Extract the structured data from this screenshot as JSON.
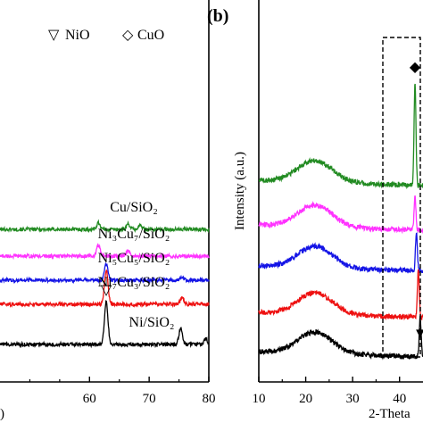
{
  "chart_data": [
    {
      "type": "line",
      "panel": "a",
      "xlabel": ")",
      "ylabel": "",
      "xlim": [
        45,
        80
      ],
      "xticks": [
        60,
        70,
        80
      ],
      "legend": {
        "placement": "top-right",
        "entries": [
          {
            "symbol": "▽",
            "label": "NiO"
          },
          {
            "symbol": "◇",
            "label": "CuO"
          }
        ]
      },
      "series": [
        {
          "name": "Cu/SiO₂",
          "color": "#228b22",
          "baseline": 0.62,
          "peaks": [
            [
              61.5,
              0.05
            ],
            [
              66.5,
              0.04
            ],
            [
              68.5,
              0.03
            ]
          ]
        },
        {
          "name": "Ni₃Cu₇/SiO₂",
          "color": "#ff33ff",
          "baseline": 0.42,
          "peaks": [
            [
              61.5,
              0.08
            ],
            [
              66.5,
              0.04
            ]
          ]
        },
        {
          "name": "Ni₅Cu₅/SiO₂",
          "color": "#1414e6",
          "baseline": 0.24,
          "peaks": [
            [
              62.8,
              0.12
            ],
            [
              75.5,
              0.02
            ]
          ]
        },
        {
          "name": "Ni₇Cu₃/SiO₂",
          "color": "#ee1111",
          "baseline": 0.06,
          "peaks": [
            [
              62.8,
              0.26
            ],
            [
              75.5,
              0.05
            ]
          ]
        },
        {
          "name": "Ni/SiO₂",
          "color": "#000000",
          "baseline": -0.24,
          "peaks": [
            [
              62.8,
              0.32
            ],
            [
              75.3,
              0.12
            ],
            [
              79.5,
              0.04
            ]
          ]
        }
      ],
      "annotations": [
        {
          "symbol": "▽",
          "x": 62.8,
          "series": "Ni/SiO₂"
        }
      ]
    },
    {
      "type": "line",
      "panel": "b",
      "xlabel": "2-Theta",
      "ylabel": "Intensity (a.u.)",
      "xlim": [
        10,
        45
      ],
      "xticks": [
        10,
        20,
        30,
        40
      ],
      "series": [
        {
          "color": "#228b22",
          "baseline": 0.44,
          "hump": 0.12,
          "peaks": [
            [
              43.3,
              0.58
            ]
          ]
        },
        {
          "color": "#ff33ff",
          "baseline": 0.19,
          "hump": 0.12,
          "peaks": [
            [
              43.3,
              0.18
            ]
          ]
        },
        {
          "color": "#1414e6",
          "baseline": -0.04,
          "hump": 0.12,
          "peaks": [
            [
              43.6,
              0.22
            ]
          ]
        },
        {
          "color": "#ee1111",
          "baseline": -0.3,
          "hump": 0.12,
          "peaks": [
            [
              44.0,
              0.26
            ]
          ]
        },
        {
          "color": "#000000",
          "baseline": -0.52,
          "hump": 0.12,
          "peaks": [
            [
              44.4,
              0.22
            ]
          ]
        }
      ],
      "annotations": [
        {
          "symbol": "◆",
          "x": 43.3,
          "series_index": 0
        },
        {
          "symbol": "▼",
          "x": 44.4,
          "series_index": 4
        }
      ]
    }
  ],
  "panel_b_letter": "(b)"
}
